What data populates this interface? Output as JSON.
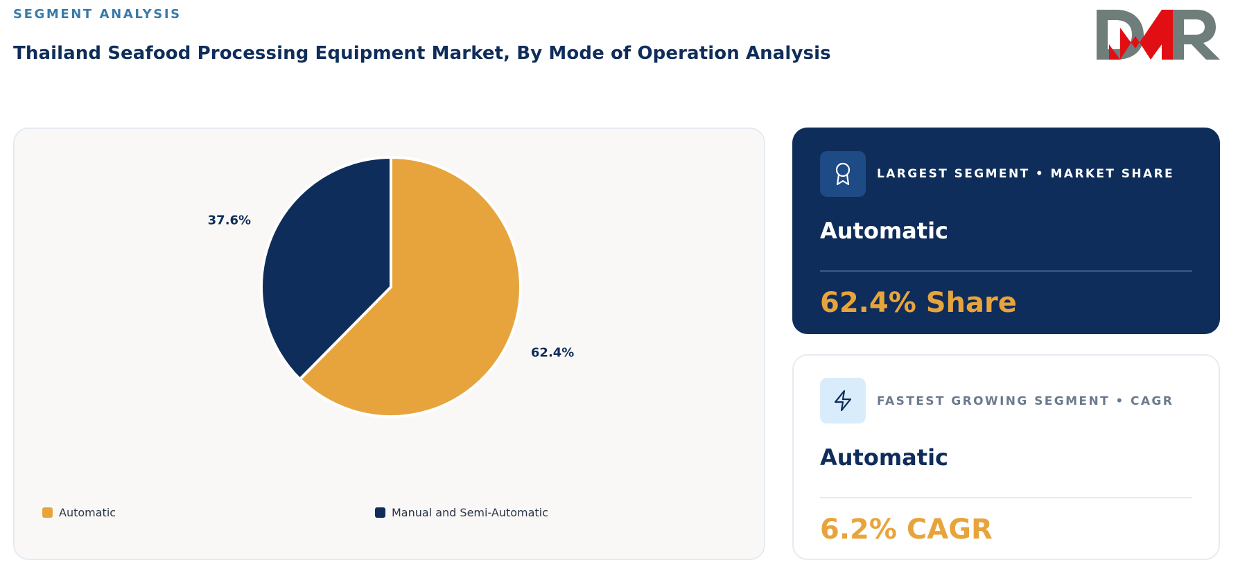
{
  "header": {
    "eyebrow": "SEGMENT ANALYSIS",
    "title": "Thailand Seafood Processing Equipment Market, By Mode of Operation Analysis",
    "logo_text": "DMR"
  },
  "colors": {
    "navy": "#0f2d5a",
    "gold": "#e8a43c",
    "eyebrow_blue": "#3a7aa8",
    "logo_red": "#e10e14",
    "logo_gray": "#6f7e7b"
  },
  "chart_data": {
    "type": "pie",
    "categories": [
      "Automatic",
      "Manual and Semi-Automatic"
    ],
    "values": [
      62.4,
      37.6
    ],
    "labels": [
      "62.4%",
      "37.6%"
    ],
    "colors": [
      "#e8a43c",
      "#0f2d5a"
    ],
    "start_angle_deg": 0,
    "direction": "clockwise",
    "legend": "bottom"
  },
  "cards": {
    "largest": {
      "icon": "award-icon",
      "label": "LARGEST SEGMENT • MARKET SHARE",
      "segment": "Automatic",
      "value": "62.4% Share"
    },
    "fastest": {
      "icon": "lightning-icon",
      "label": "FASTEST GROWING SEGMENT • CAGR",
      "segment": "Automatic",
      "value": "6.2% CAGR"
    }
  }
}
